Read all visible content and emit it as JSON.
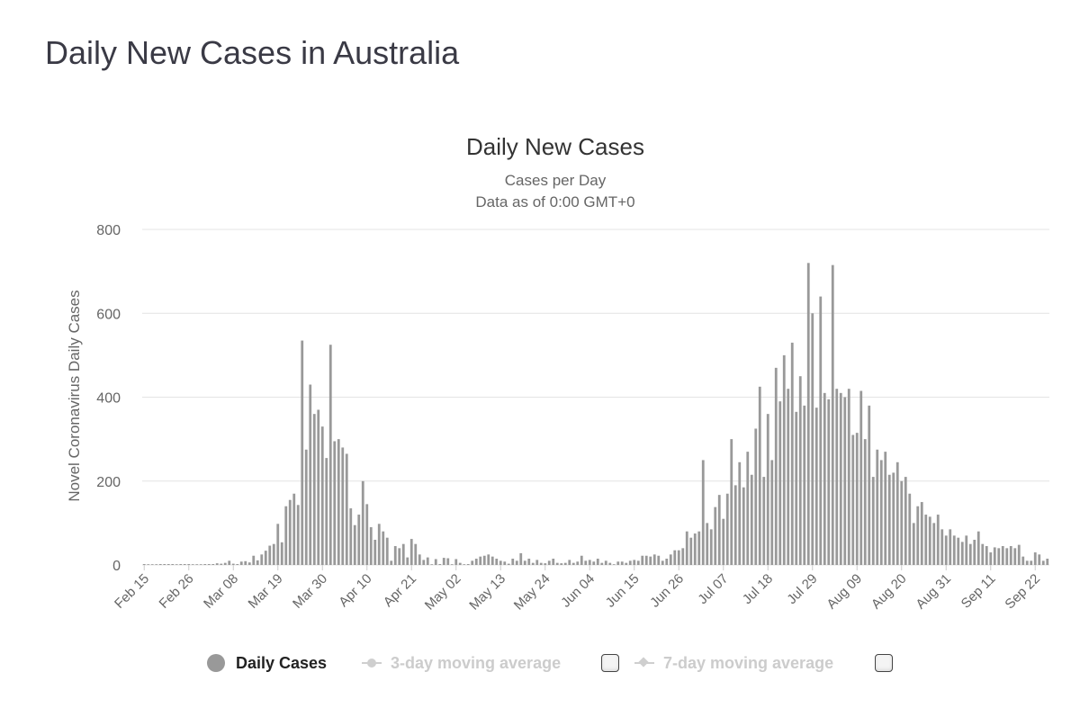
{
  "page": {
    "title": "Daily New Cases in Australia"
  },
  "chart_data": {
    "type": "bar",
    "title": "Daily New Cases",
    "subtitle_lines": [
      "Cases per Day",
      "Data as of 0:00 GMT+0"
    ],
    "ylabel": "Novel Coronavirus Daily Cases",
    "xlabel": "",
    "ylim": [
      0,
      800
    ],
    "yticks": [
      "0",
      "200",
      "400",
      "600",
      "800"
    ],
    "xtick_labels": [
      "Feb 15",
      "Feb 26",
      "Mar 08",
      "Mar 19",
      "Mar 30",
      "Apr 10",
      "Apr 21",
      "May 02",
      "May 13",
      "May 24",
      "Jun 04",
      "Jun 15",
      "Jun 26",
      "Jul 07",
      "Jul 18",
      "Jul 29",
      "Aug 09",
      "Aug 20",
      "Aug 31",
      "Sep 11",
      "Sep 22"
    ],
    "grid": true,
    "bar_color": "#999999",
    "series_name": "Daily Cases",
    "start_date": "Feb 15",
    "values": [
      1,
      0,
      0,
      0,
      1,
      1,
      1,
      1,
      0,
      1,
      1,
      1,
      0,
      0,
      0,
      1,
      1,
      2,
      4,
      3,
      5,
      10,
      3,
      1,
      8,
      9,
      6,
      22,
      11,
      25,
      34,
      46,
      50,
      98,
      54,
      140,
      155,
      170,
      143,
      535,
      275,
      430,
      360,
      370,
      330,
      255,
      525,
      295,
      300,
      280,
      265,
      135,
      95,
      120,
      200,
      145,
      90,
      60,
      98,
      80,
      65,
      10,
      45,
      40,
      50,
      18,
      62,
      50,
      25,
      12,
      18,
      0,
      14,
      2,
      17,
      16,
      0,
      14,
      5,
      0,
      2,
      10,
      15,
      20,
      22,
      25,
      20,
      15,
      10,
      8,
      3,
      15,
      10,
      28,
      10,
      15,
      5,
      12,
      5,
      4,
      10,
      15,
      5,
      4,
      5,
      12,
      5,
      8,
      22,
      10,
      12,
      8,
      15,
      5,
      10,
      5,
      0,
      8,
      8,
      5,
      10,
      12,
      10,
      22,
      22,
      20,
      25,
      22,
      10,
      15,
      25,
      35,
      35,
      40,
      80,
      65,
      75,
      80,
      250,
      100,
      85,
      138,
      167,
      110,
      170,
      300,
      190,
      245,
      185,
      270,
      215,
      325,
      425,
      210,
      360,
      250,
      470,
      390,
      500,
      420,
      530,
      365,
      450,
      380,
      720,
      600,
      375,
      640,
      410,
      395,
      715,
      420,
      410,
      400,
      420,
      310,
      315,
      415,
      300,
      380,
      210,
      275,
      250,
      270,
      215,
      220,
      245,
      200,
      210,
      170,
      100,
      140,
      150,
      120,
      115,
      100,
      120,
      85,
      70,
      85,
      70,
      65,
      55,
      70,
      50,
      60,
      80,
      50,
      45,
      30,
      42,
      40,
      45,
      40,
      45,
      40,
      48,
      20,
      10,
      10,
      30,
      25,
      10,
      15
    ]
  },
  "legend": {
    "items": [
      {
        "label": "Daily Cases",
        "active": true
      },
      {
        "label": "3-day moving average",
        "active": false
      },
      {
        "label": "7-day moving average",
        "active": false
      }
    ]
  }
}
